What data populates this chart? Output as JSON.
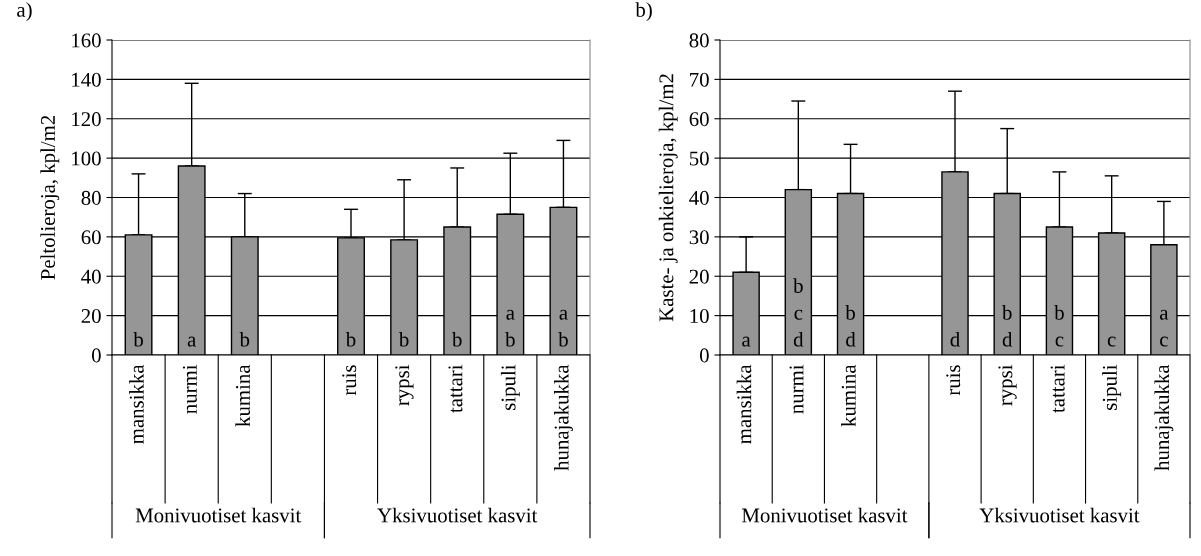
{
  "chart_data": [
    {
      "type": "bar",
      "title": "a)",
      "ylabel": "Peltolieroja, kpl/m2",
      "categories": [
        "mansikka",
        "nurmi",
        "kumina",
        null,
        "ruis",
        "rypsi",
        "tattari",
        "sipuli",
        "hunajakukka"
      ],
      "values": [
        61,
        96,
        60,
        null,
        59.5,
        58.5,
        65,
        71.5,
        75
      ],
      "color": "#969696",
      "errors": [
        [
          61,
          92
        ],
        [
          96,
          138
        ],
        [
          60,
          82
        ],
        null,
        [
          59.5,
          74
        ],
        [
          58.5,
          89
        ],
        [
          65,
          95
        ],
        [
          71.5,
          102.5
        ],
        [
          75,
          109
        ]
      ],
      "ylim": [
        0,
        160
      ],
      "yticks": [
        0,
        20,
        40,
        60,
        80,
        100,
        120,
        140,
        160
      ],
      "grid": "y",
      "annotations": [
        "Monivuotiset kasvit",
        "Yksivuotiset kasvit",
        {
          "text": "b",
          "x": "mansikka",
          "y": 0
        },
        {
          "text": "a",
          "x": "nurmi",
          "y": 0
        },
        {
          "text": "b",
          "x": "kumina",
          "y": 0
        },
        {
          "text": "b",
          "x": "ruis",
          "y": 0
        },
        {
          "text": "b",
          "x": "rypsi",
          "y": 0
        },
        {
          "text": "b",
          "x": "tattari",
          "y": 0
        },
        {
          "text": "a\nb",
          "x": "sipuli",
          "y": 0
        },
        {
          "text": "a\nb",
          "x": "hunajakukka",
          "y": 0
        }
      ]
    },
    {
      "type": "bar",
      "title": "b)",
      "ylabel": "Kaste- ja onkielieroja, kpl/m2",
      "categories": [
        "mansikka",
        "nurmi",
        "kumina",
        null,
        "ruis",
        "rypsi",
        "tattari",
        "sipuli",
        "hunajakukka"
      ],
      "values": [
        21,
        42,
        41,
        null,
        46.5,
        41,
        32.5,
        31,
        28
      ],
      "color": "#969696",
      "errors": [
        [
          21,
          30
        ],
        [
          42,
          64.5
        ],
        [
          41,
          53.5
        ],
        null,
        [
          46.5,
          67
        ],
        [
          41,
          57.5
        ],
        [
          32.5,
          46.5
        ],
        [
          31,
          45.5
        ],
        [
          28,
          39
        ]
      ],
      "ylim": [
        0,
        80
      ],
      "yticks": [
        0,
        10,
        20,
        30,
        40,
        50,
        60,
        70,
        80
      ],
      "grid": "y",
      "annotations": [
        "Monivuotiset kasvit",
        "Yksivuotiset kasvit",
        {
          "text": "a",
          "x": "mansikka",
          "y": 0
        },
        {
          "text": "b\nc\nd",
          "x": "nurmi",
          "y": 0
        },
        {
          "text": "b\nd",
          "x": "kumina",
          "y": 0
        },
        {
          "text": "d",
          "x": "ruis",
          "y": 0
        },
        {
          "text": "b\nd",
          "x": "rypsi",
          "y": 0
        },
        {
          "text": "b\nc",
          "x": "tattari",
          "y": 0
        },
        {
          "text": "c",
          "x": "sipuli",
          "y": 0
        },
        {
          "text": "a\nc",
          "x": "hunajakukka",
          "y": 0
        }
      ]
    }
  ]
}
